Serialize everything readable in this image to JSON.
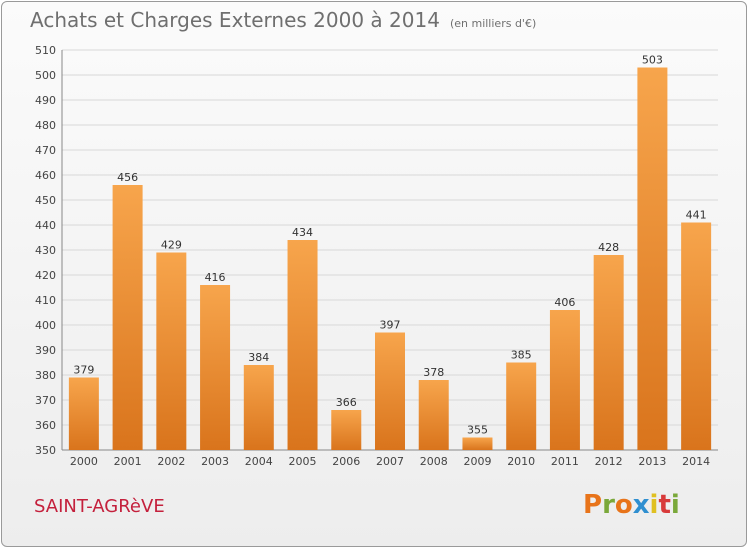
{
  "chart_data": {
    "type": "bar",
    "title": "Achats et Charges Externes 2000 à 2014",
    "subtitle": "(en milliers d'€)",
    "xlabel": "",
    "ylabel": "",
    "categories": [
      "2000",
      "2001",
      "2002",
      "2003",
      "2004",
      "2005",
      "2006",
      "2007",
      "2008",
      "2009",
      "2010",
      "2011",
      "2012",
      "2013",
      "2014"
    ],
    "values": [
      379,
      456,
      429,
      416,
      384,
      434,
      366,
      397,
      378,
      355,
      385,
      406,
      428,
      503,
      441
    ],
    "ylim": [
      350,
      510
    ],
    "yticks": [
      350,
      360,
      370,
      380,
      390,
      400,
      410,
      420,
      430,
      440,
      450,
      460,
      470,
      480,
      490,
      500,
      510
    ],
    "grid": true,
    "legend": "none",
    "bar_color_top": "#f7a54c",
    "bar_color_bottom": "#d9741c"
  },
  "footer": {
    "city": "SAINT-AGRèVE",
    "logo_letters": [
      "P",
      "r",
      "o",
      "x",
      "i",
      "t",
      "i"
    ],
    "logo_colors": [
      "#e8741a",
      "#7aa83a",
      "#e8741a",
      "#2f8fd0",
      "#e0c020",
      "#d83a3a",
      "#7aa83a"
    ]
  }
}
